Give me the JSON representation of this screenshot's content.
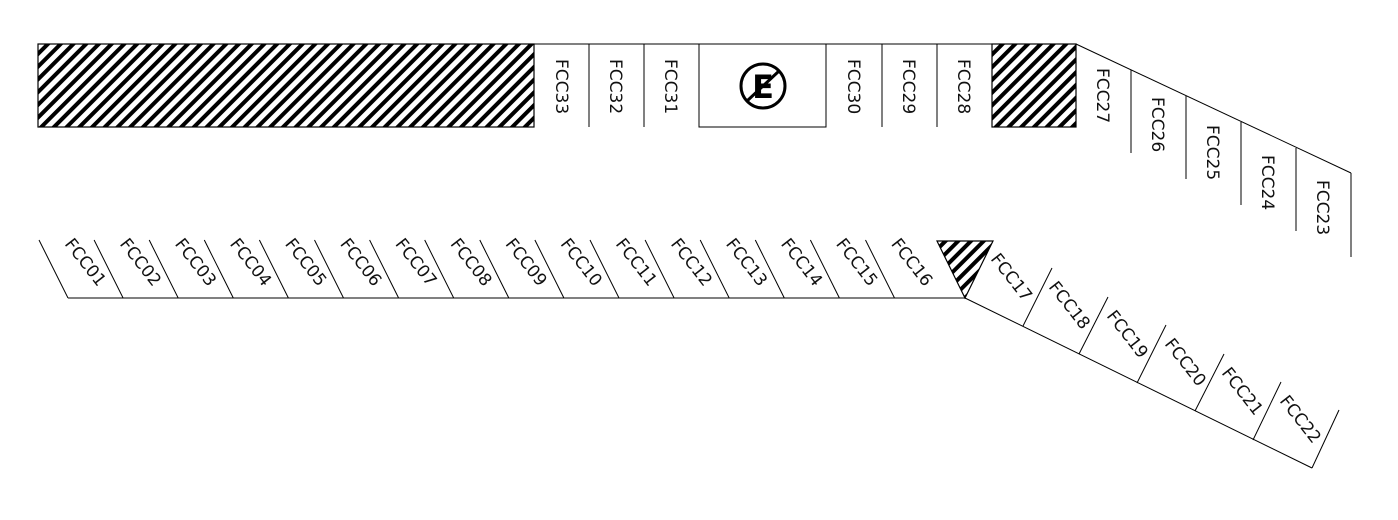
{
  "bays": {
    "top_row": [
      "FCC33",
      "FCC32",
      "FCC31",
      "FCC30",
      "FCC29",
      "FCC28"
    ],
    "right_angled": [
      "FCC27",
      "FCC26",
      "FCC25",
      "FCC24",
      "FCC23"
    ],
    "bottom_row": [
      "FCC01",
      "FCC02",
      "FCC03",
      "FCC04",
      "FCC05",
      "FCC06",
      "FCC07",
      "FCC08",
      "FCC09",
      "FCC10",
      "FCC11",
      "FCC12",
      "FCC13",
      "FCC14",
      "FCC15",
      "FCC16"
    ],
    "lower_angled": [
      "FCC17",
      "FCC18",
      "FCC19",
      "FCC20",
      "FCC21",
      "FCC22"
    ]
  },
  "no_parking": {
    "letter": "E",
    "icon": "no-parking-icon"
  },
  "colors": {
    "line": "#000000",
    "hatch": "#000000",
    "background": "#ffffff"
  }
}
